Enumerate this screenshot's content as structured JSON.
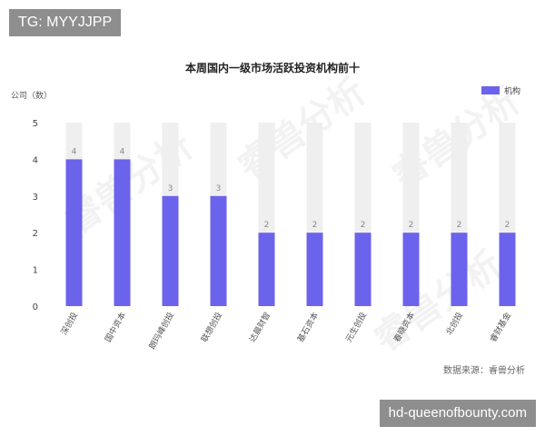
{
  "top_tag": "TG: MYYJJPP",
  "bottom_tag": "hd-queenofbounty.com",
  "watermark": "睿兽分析",
  "source_text": "数据来源：睿兽分析",
  "colors": {
    "bar": "#6b63ec",
    "track": "#efefef",
    "tag_bg": "#8e8e8e"
  },
  "chart_data": {
    "type": "bar",
    "title": "本周国内一级市场活跃投资机构前十",
    "ylabel": "公司（数）",
    "xlabel": "",
    "ylim": [
      0,
      5
    ],
    "yticks": [
      "0",
      "1",
      "2",
      "3",
      "4",
      "5"
    ],
    "legend": "top-right",
    "grid": false,
    "categories": [
      "深创投",
      "国中资本",
      "朗玛峰创投",
      "联想创投",
      "达晨财智",
      "基石资本",
      "元生创投",
      "春晓资本",
      "北创投",
      "睿财基金"
    ],
    "series": [
      {
        "name": "机构",
        "values": [
          4,
          4,
          3,
          3,
          2,
          2,
          2,
          2,
          2,
          2
        ],
        "labels": [
          "4",
          "4",
          "3",
          "3",
          "2",
          "2",
          "2",
          "2",
          "2",
          "2"
        ]
      }
    ]
  }
}
